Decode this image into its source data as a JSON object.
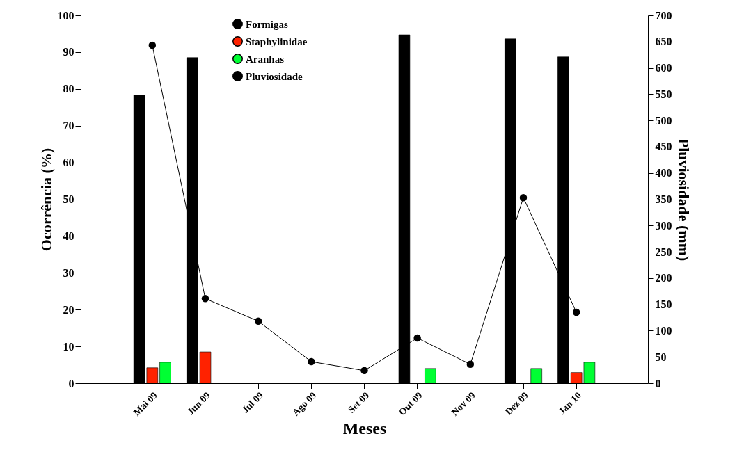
{
  "chart_data": {
    "type": "bar",
    "xlabel": "Meses",
    "ylabel": "Ocorrência (%)",
    "y2label": "Pluviosidade (mm)",
    "categories": [
      "Mai 09",
      "Jun 09",
      "Jul 09",
      "Ago 09",
      "Set 09",
      "Out 09",
      "Nov 09",
      "Dez 09",
      "Jan 10"
    ],
    "series": [
      {
        "name": "Formigas",
        "color": "#000000",
        "values": [
          78.3,
          88.5,
          null,
          null,
          null,
          94.7,
          null,
          93.6,
          88.7
        ]
      },
      {
        "name": "Staphylinidae",
        "color": "#ff2200",
        "values": [
          4.2,
          8.5,
          null,
          null,
          null,
          null,
          null,
          null,
          2.9
        ]
      },
      {
        "name": "Aranhas",
        "color": "#00ff33",
        "values": [
          5.7,
          null,
          null,
          null,
          null,
          4.0,
          null,
          4.0,
          5.7
        ]
      },
      {
        "name": "Pluviosidade",
        "type": "line",
        "axis": "y2",
        "color": "#000000",
        "marker": "circle",
        "values": [
          643,
          161,
          118,
          41,
          24,
          86,
          36,
          353,
          135
        ]
      }
    ],
    "ylim": [
      0,
      100
    ],
    "yticks": [
      0,
      10,
      20,
      30,
      40,
      50,
      60,
      70,
      80,
      90,
      100
    ],
    "y2lim": [
      0,
      700
    ],
    "y2ticks": [
      0,
      50,
      100,
      150,
      200,
      250,
      300,
      350,
      400,
      450,
      500,
      550,
      600,
      650,
      700
    ],
    "grid": false,
    "legend": "top"
  }
}
